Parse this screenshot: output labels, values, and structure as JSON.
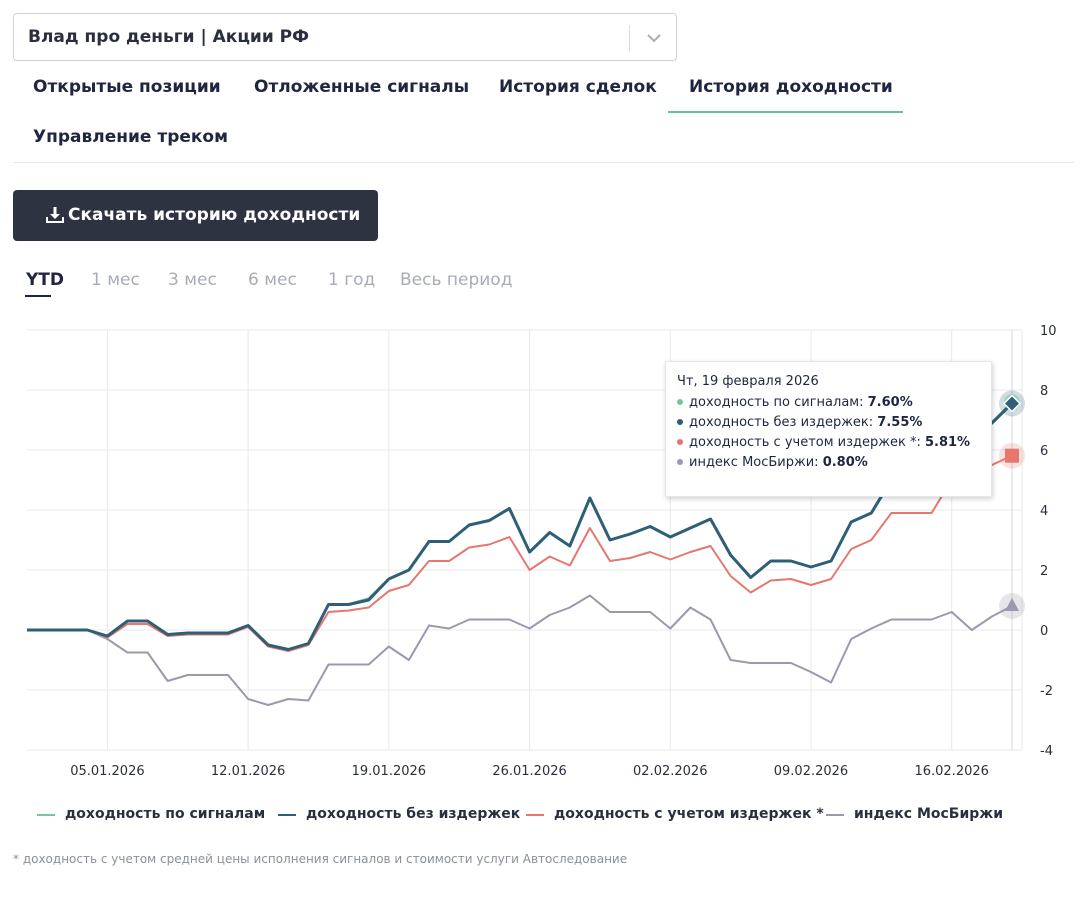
{
  "selector": {
    "value": "Влад про деньги | Акции РФ"
  },
  "tabs": [
    {
      "label": "Открытые позиции"
    },
    {
      "label": "Отложенные сигналы"
    },
    {
      "label": "История сделок"
    },
    {
      "label": "История доходности"
    },
    {
      "label": "Управление треком"
    }
  ],
  "active_tab": "История доходности",
  "download_button": {
    "label": "Скачать историю доходности"
  },
  "periods": [
    {
      "label": "YTD"
    },
    {
      "label": "1 мес"
    },
    {
      "label": "3 мес"
    },
    {
      "label": "6 мес"
    },
    {
      "label": "1 год"
    },
    {
      "label": "Весь период"
    }
  ],
  "active_period": "YTD",
  "colors": {
    "signals": "#72c9a0",
    "no_costs": "#2e5f77",
    "with_costs": "#e5776f",
    "index": "#9c98ad",
    "grid": "#e6e8ec"
  },
  "tooltip": {
    "title": "Чт, 19 февраля 2026",
    "rows": [
      {
        "label": "доходность по сигналам:",
        "value": "7.60%"
      },
      {
        "label": "доходность без издержек:",
        "value": "7.55%"
      },
      {
        "label": "доходность с учетом издержек *:",
        "value": "5.81%"
      },
      {
        "label": "индекс МосБиржи:",
        "value": "0.80%"
      }
    ]
  },
  "legend": [
    {
      "label": "доходность по сигналам"
    },
    {
      "label": "доходность без издержек"
    },
    {
      "label": "доходность с учетом издержек *"
    },
    {
      "label": "индекс МосБиржи"
    }
  ],
  "footnote": "* доходность с учетом средней цены исполнения сигналов и стоимости услуги Автоследование",
  "chart_data": {
    "type": "line",
    "title": "",
    "xlabel": "",
    "ylabel": "",
    "ylim": [
      -4,
      10
    ],
    "y_ticks": [
      10,
      8,
      6,
      4,
      2,
      0,
      -2,
      -4
    ],
    "x_ticks": [
      {
        "label": "05.01.2026",
        "day": 5
      },
      {
        "label": "12.01.2026",
        "day": 12
      },
      {
        "label": "19.01.2026",
        "day": 19
      },
      {
        "label": "26.01.2026",
        "day": 26
      },
      {
        "label": "02.02.2026",
        "day": 33
      },
      {
        "label": "09.02.2026",
        "day": 40
      },
      {
        "label": "16.02.2026",
        "day": 47
      }
    ],
    "x_range": [
      1,
      50
    ],
    "x_days": [
      1,
      2,
      3,
      4,
      5,
      6,
      7,
      8,
      9,
      10,
      11,
      12,
      13,
      14,
      15,
      16,
      17,
      18,
      19,
      20,
      21,
      22,
      23,
      24,
      25,
      26,
      27,
      28,
      29,
      30,
      31,
      32,
      33,
      34,
      35,
      36,
      37,
      38,
      39,
      40,
      41,
      42,
      43,
      44,
      45,
      46,
      47,
      48,
      49,
      50
    ],
    "series": [
      {
        "name": "доходность по сигналам",
        "color_key": "signals",
        "values": [
          0,
          0,
          0,
          0,
          -0.2,
          0.3,
          0.3,
          -0.15,
          -0.1,
          -0.1,
          -0.1,
          0.15,
          -0.5,
          -0.65,
          -0.45,
          0.85,
          0.85,
          1.05,
          1.7,
          2,
          2.95,
          2.95,
          3.5,
          3.65,
          4.05,
          2.6,
          3.25,
          2.8,
          4.4,
          3,
          3.2,
          3.45,
          3.1,
          3.4,
          3.7,
          2.5,
          1.75,
          2.3,
          2.3,
          2.1,
          2.3,
          3.6,
          3.9,
          5,
          5.2,
          5.5,
          6,
          6.2,
          6.9,
          7.6
        ]
      },
      {
        "name": "доходность без издержек",
        "color_key": "no_costs",
        "values": [
          0,
          0,
          0,
          0,
          -0.2,
          0.3,
          0.3,
          -0.15,
          -0.1,
          -0.1,
          -0.1,
          0.15,
          -0.5,
          -0.65,
          -0.45,
          0.85,
          0.85,
          1,
          1.7,
          2,
          2.95,
          2.95,
          3.5,
          3.65,
          4.05,
          2.6,
          3.25,
          2.8,
          4.4,
          3,
          3.2,
          3.45,
          3.1,
          3.4,
          3.7,
          2.5,
          1.75,
          2.3,
          2.3,
          2.1,
          2.3,
          3.6,
          3.9,
          5,
          5.2,
          5.5,
          6,
          6.2,
          6.9,
          7.55
        ]
      },
      {
        "name": "доходность с учетом издержек *",
        "color_key": "with_costs",
        "values": [
          0,
          0,
          0,
          0,
          -0.25,
          0.2,
          0.2,
          -0.2,
          -0.15,
          -0.15,
          -0.15,
          0.1,
          -0.55,
          -0.7,
          -0.5,
          0.6,
          0.65,
          0.75,
          1.3,
          1.5,
          2.3,
          2.3,
          2.75,
          2.85,
          3.1,
          2,
          2.45,
          2.15,
          3.4,
          2.3,
          2.4,
          2.6,
          2.35,
          2.6,
          2.8,
          1.8,
          1.25,
          1.65,
          1.7,
          1.5,
          1.7,
          2.7,
          3,
          3.9,
          3.9,
          3.9,
          5,
          5.2,
          5.5,
          5.81
        ]
      },
      {
        "name": "индекс МосБиржи",
        "color_key": "index",
        "values": [
          0,
          0,
          0,
          0,
          -0.3,
          -0.75,
          -0.75,
          -1.7,
          -1.5,
          -1.5,
          -1.5,
          -2.3,
          -2.5,
          -2.3,
          -2.35,
          -1.15,
          -1.15,
          -1.15,
          -0.55,
          -1,
          0.15,
          0.05,
          0.35,
          0.35,
          0.35,
          0.05,
          0.5,
          0.75,
          1.15,
          0.6,
          0.6,
          0.6,
          0.05,
          0.75,
          0.35,
          -1,
          -1.1,
          -1.1,
          -1.1,
          -1.4,
          -1.75,
          -0.3,
          0.05,
          0.35,
          0.35,
          0.35,
          0.6,
          0,
          0.45,
          0.8
        ]
      }
    ]
  }
}
